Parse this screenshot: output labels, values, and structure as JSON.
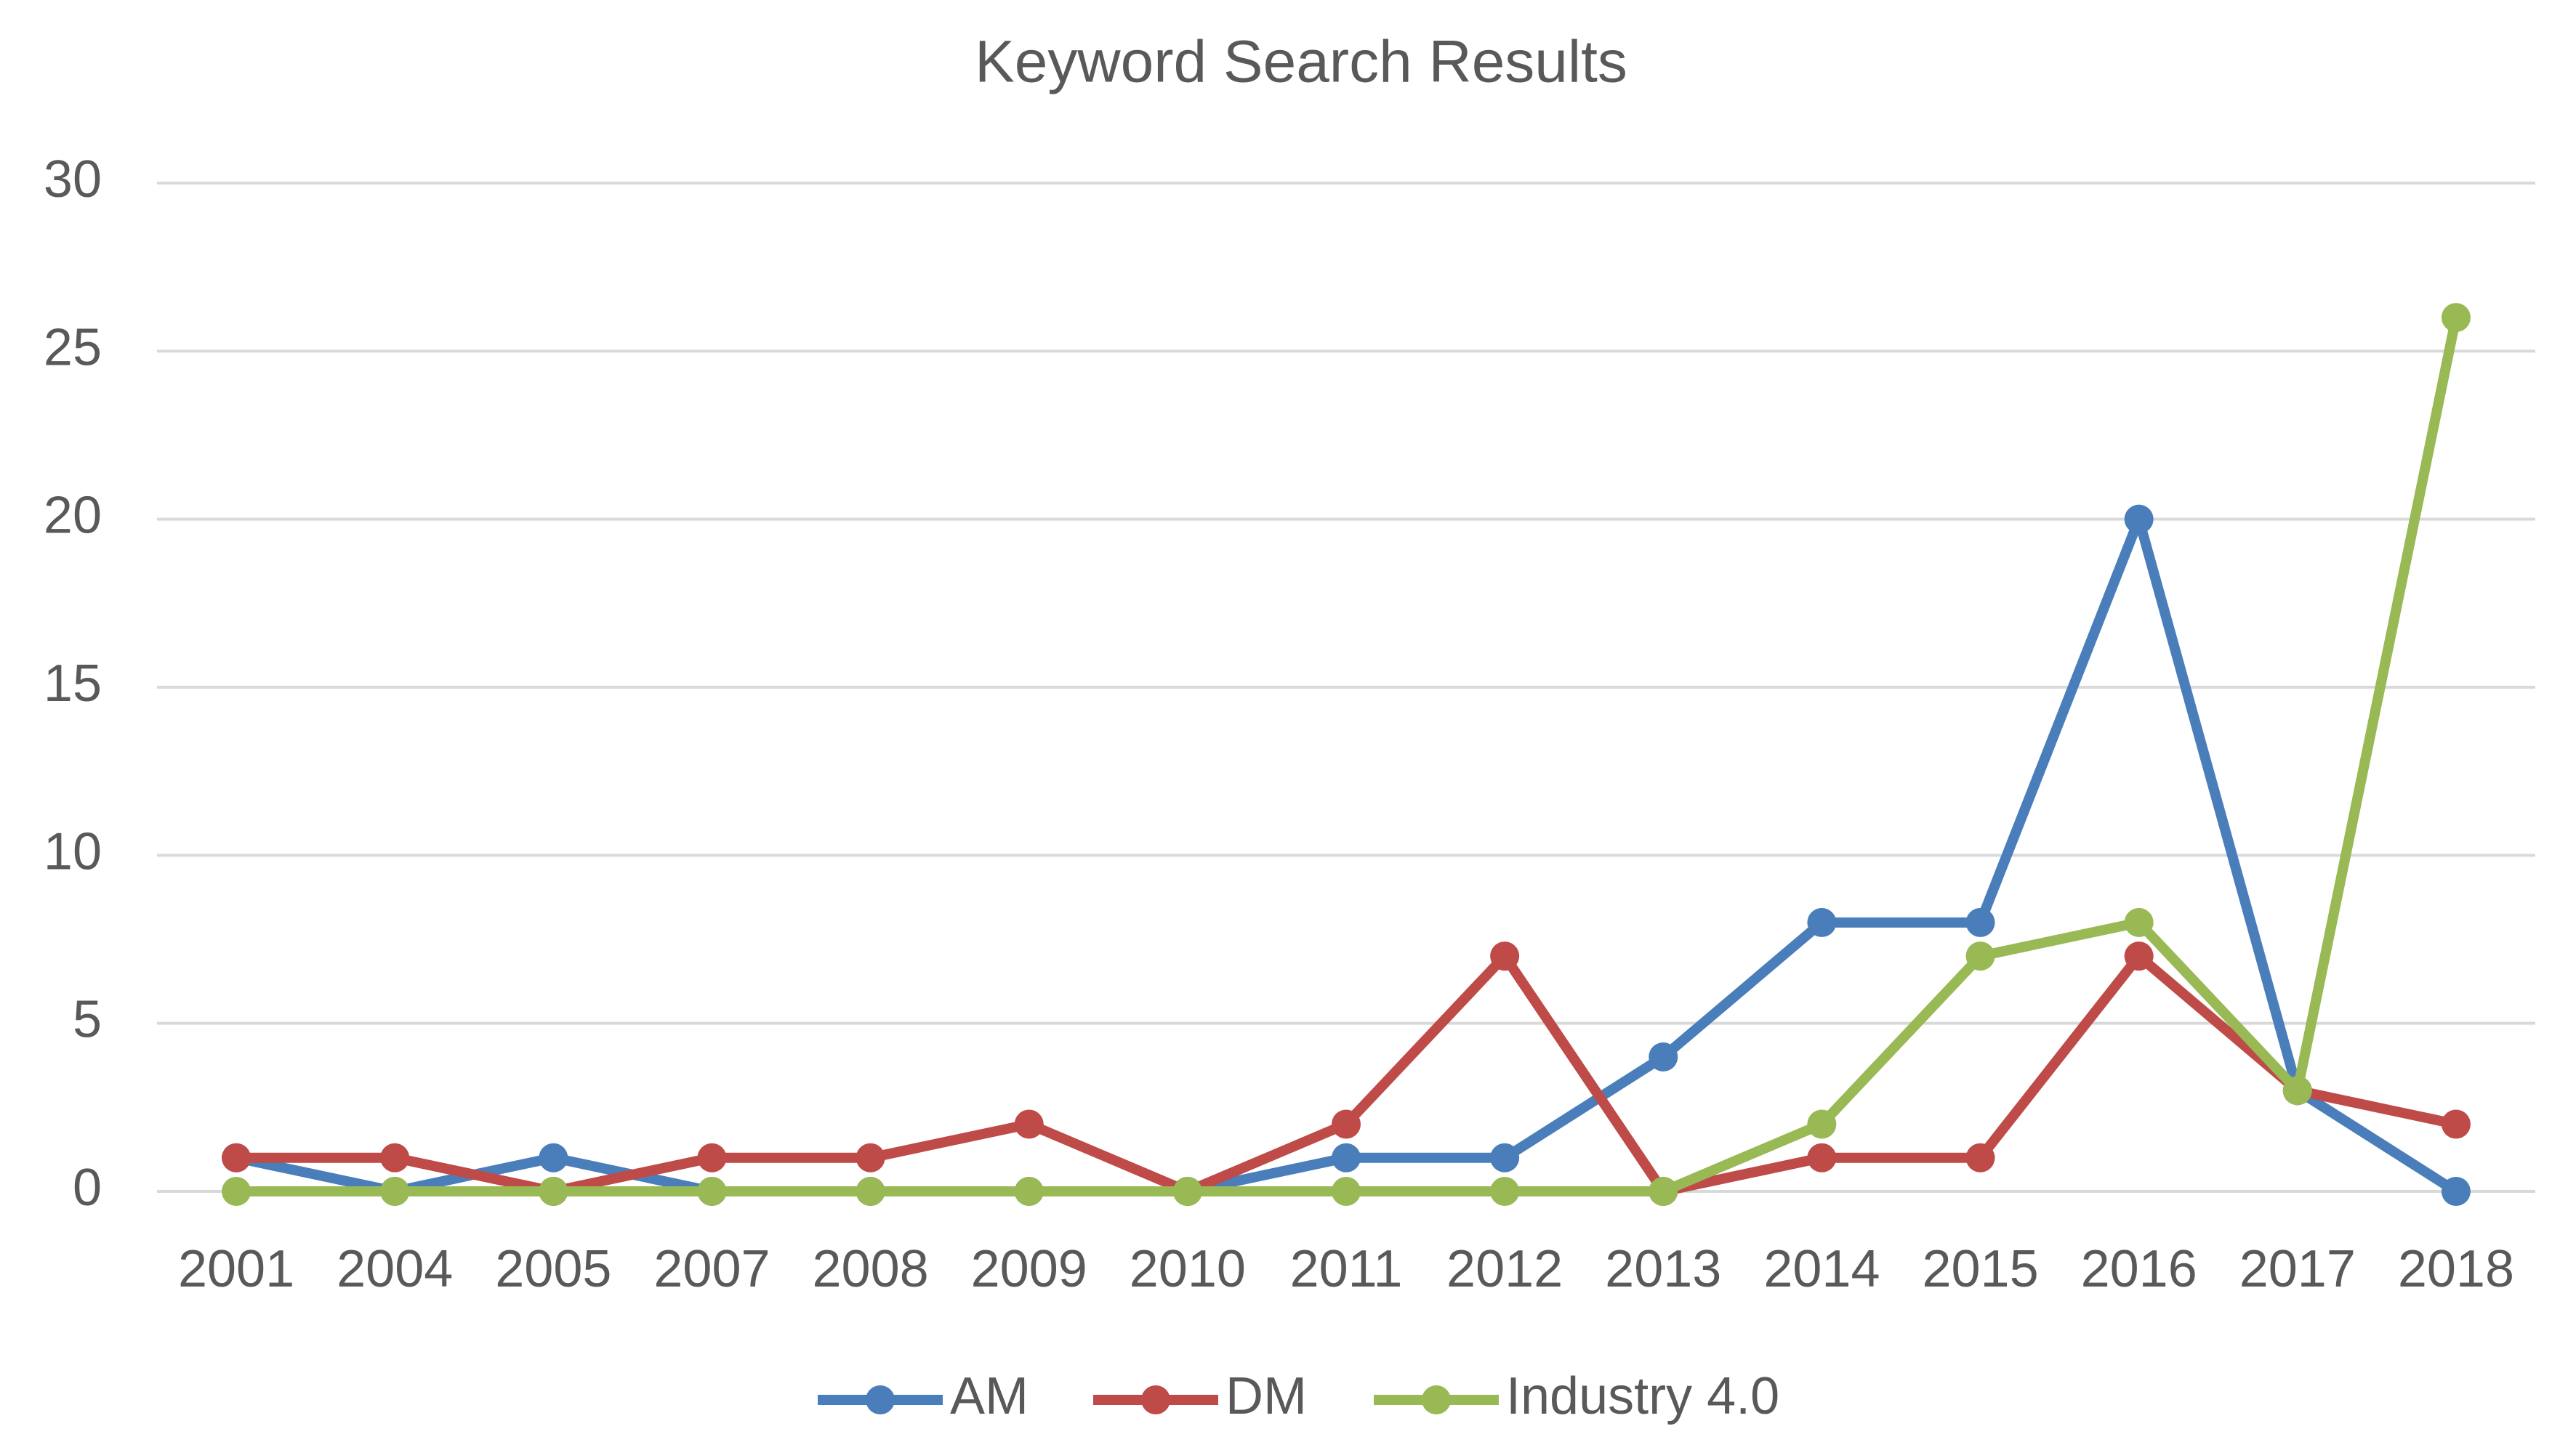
{
  "chart_data": {
    "type": "line",
    "title": "Keyword Search Results",
    "categories": [
      "2001",
      "2004",
      "2005",
      "2007",
      "2008",
      "2009",
      "2010",
      "2011",
      "2012",
      "2013",
      "2014",
      "2015",
      "2016",
      "2017",
      "2018"
    ],
    "series": [
      {
        "name": "AM",
        "color": "#4a7ebb",
        "values": [
          1,
          0,
          1,
          0,
          0,
          0,
          0,
          1,
          1,
          4,
          8,
          8,
          20,
          3,
          0
        ]
      },
      {
        "name": "DM",
        "color": "#be4b48",
        "values": [
          1,
          1,
          0,
          1,
          1,
          2,
          0,
          2,
          7,
          0,
          1,
          1,
          7,
          3,
          2
        ]
      },
      {
        "name": "Industry 4.0",
        "color": "#98b954",
        "values": [
          0,
          0,
          0,
          0,
          0,
          0,
          0,
          0,
          0,
          0,
          2,
          7,
          8,
          3,
          26
        ]
      }
    ],
    "ylim": [
      0,
      30
    ],
    "yticks": [
      0,
      5,
      10,
      15,
      20,
      25,
      30
    ],
    "grid": true,
    "legend": "bottom"
  }
}
